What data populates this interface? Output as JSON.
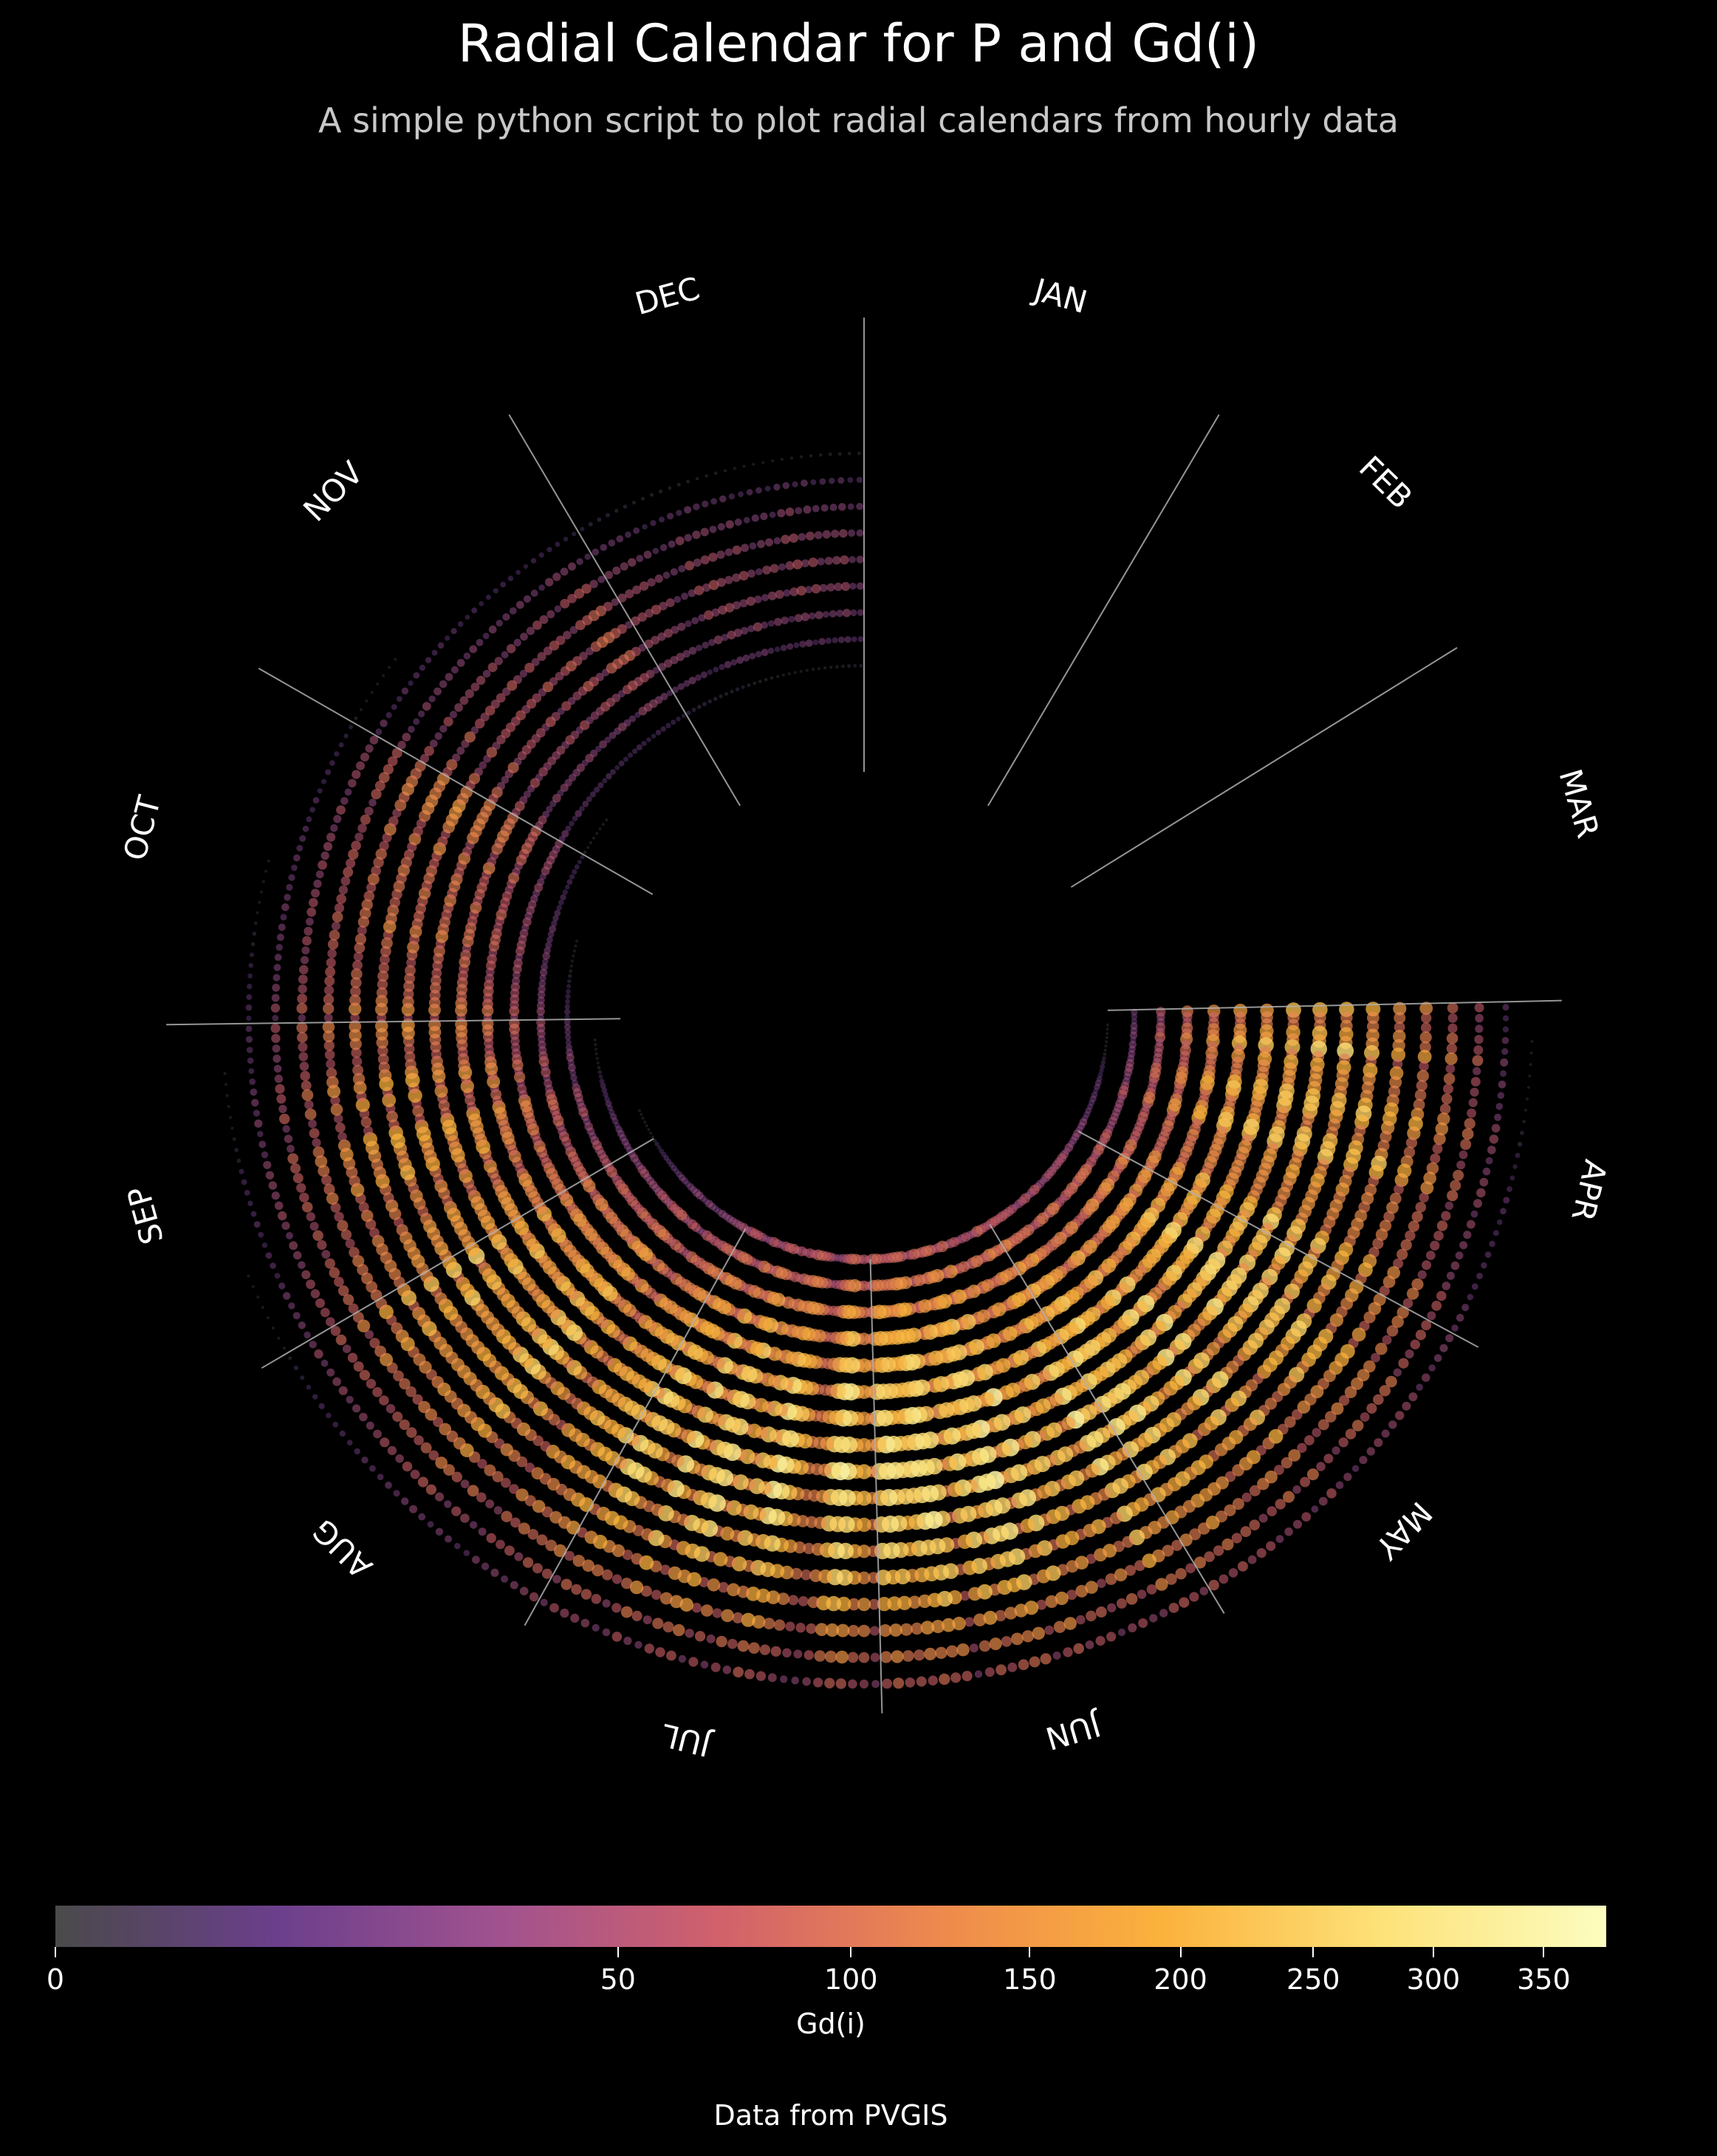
{
  "title": "Radial Calendar for P and Gd(i)",
  "subtitle": "A simple python script to plot radial calendars from hourly data",
  "source_note": "Data from PVGIS",
  "chart_data": {
    "type": "scatter",
    "layout": "radial-calendar",
    "x": "day of year (angle, January at top, clockwise)",
    "y": "hour of day (radius)",
    "color_metric": "Gd(i)",
    "size_metric": "P",
    "months": [
      "JAN",
      "FEB",
      "MAR",
      "APR",
      "MAY",
      "JUN",
      "JUL",
      "AUG",
      "SEP",
      "OCT",
      "NOV",
      "DEC"
    ],
    "plotted_months": [
      "APR",
      "MAY",
      "JUN",
      "JUL",
      "AUG",
      "SEP",
      "OCT",
      "NOV",
      "DEC"
    ],
    "hours_shown": [
      5,
      21
    ],
    "monthly_peak_gd": {
      "APR": 300,
      "MAY": 330,
      "JUN": 360,
      "JUL": 350,
      "AUG": 280,
      "SEP": 230,
      "OCT": 170,
      "NOV": 110,
      "DEC": 80
    },
    "colorbar": {
      "label": "Gd(i)",
      "range": [
        0,
        380
      ],
      "scale": "sqrt",
      "ticks": [
        0,
        50,
        100,
        150,
        200,
        250,
        300,
        350
      ],
      "colormap": [
        "#4a4a4a",
        "#6b3f8c",
        "#a0528f",
        "#d1616b",
        "#ee8a4d",
        "#fbb23c",
        "#fde27a",
        "#fcfdbf"
      ]
    }
  }
}
